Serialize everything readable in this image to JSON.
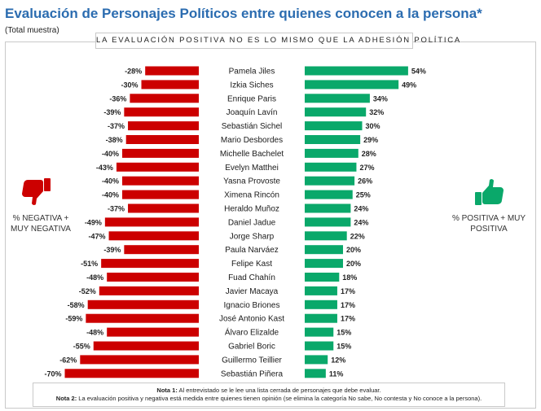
{
  "header": {
    "title": "Evaluación de Personajes Políticos entre quienes conocen a la persona*",
    "subtitle": "(Total muestra)",
    "banner": "LA EVALUACIÓN POSITIVA NO ES LO MISMO QUE LA ADHESIÓN POLÍTICA"
  },
  "legend": {
    "negative_label": "% NEGATIVA + MUY NEGATIVA",
    "positive_label": "% POSITIVA + MUY POSITIVA",
    "negative_icon": "thumbs-down-icon",
    "positive_icon": "thumbs-up-icon"
  },
  "colors": {
    "negative": "#cc0000",
    "positive": "#0aa86a",
    "title": "#2b6cb0"
  },
  "notes": {
    "note1_label": "Nota 1:",
    "note1_text": " Al entrevistado se le lee una lista cerrada de personajes que debe evaluar.",
    "note2_label": "Nota 2:",
    "note2_text": " La evaluación positiva y negativa está medida entre quienes tienen opinión (se elimina la categoría No sabe, No contesta y No conoce a la persona)."
  },
  "chart_data": {
    "type": "bar",
    "orientation": "horizontal-diverging",
    "categories": [
      "Pamela Jiles",
      "Izkia Siches",
      "Enrique Paris",
      "Joaquín Lavín",
      "Sebastián Sichel",
      "Mario Desbordes",
      "Michelle Bachelet",
      "Evelyn Matthei",
      "Yasna Provoste",
      "Ximena Rincón",
      "Heraldo Muñoz",
      "Daniel Jadue",
      "Jorge Sharp",
      "Paula Narváez",
      "Felipe Kast",
      "Fuad Chahín",
      "Javier Macaya",
      "Ignacio Briones",
      "José Antonio Kast",
      "Álvaro Elizalde",
      "Gabriel Boric",
      "Guillermo Teillier",
      "Sebastián Piñera"
    ],
    "series": [
      {
        "name": "% NEGATIVA + MUY NEGATIVA",
        "values": [
          -28,
          -30,
          -36,
          -39,
          -37,
          -38,
          -40,
          -43,
          -40,
          -40,
          -37,
          -49,
          -47,
          -39,
          -51,
          -48,
          -52,
          -58,
          -59,
          -48,
          -55,
          -62,
          -70
        ]
      },
      {
        "name": "% POSITIVA + MUY POSITIVA",
        "values": [
          54,
          49,
          34,
          32,
          30,
          29,
          28,
          27,
          26,
          25,
          24,
          24,
          22,
          20,
          20,
          18,
          17,
          17,
          17,
          15,
          15,
          12,
          11
        ]
      }
    ],
    "negative_labels": [
      "-28%",
      "-30%",
      "-36%",
      "-39%",
      "-37%",
      "-38%",
      "-40%",
      "-43%",
      "-40%",
      "-40%",
      "-37%",
      "-49%",
      "-47%",
      "-39%",
      "-51%",
      "-48%",
      "-52%",
      "-58%",
      "-59%",
      "-48%",
      "-55%",
      "-62%",
      "-70%"
    ],
    "positive_labels": [
      "54%",
      "49%",
      "34%",
      "32%",
      "30%",
      "29%",
      "28%",
      "27%",
      "26%",
      "25%",
      "24%",
      "24%",
      "22%",
      "20%",
      "20%",
      "18%",
      "17%",
      "17%",
      "17%",
      "15%",
      "15%",
      "12%",
      "11%"
    ],
    "grid": false,
    "legend": "sides"
  }
}
